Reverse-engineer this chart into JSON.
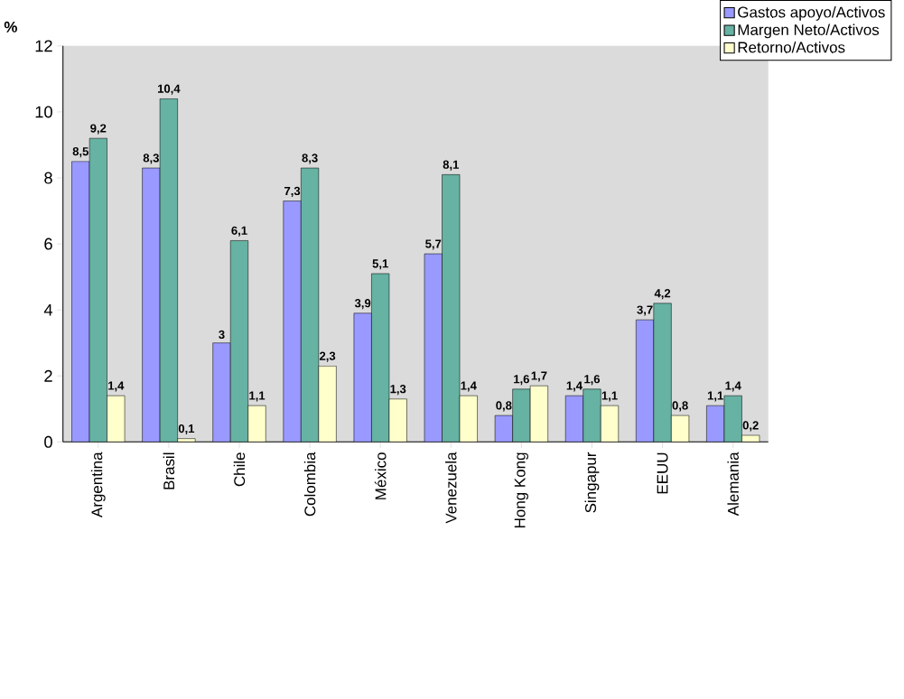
{
  "chart_data": {
    "type": "bar",
    "ylabel": "%",
    "categories": [
      "Argentina",
      "Brasil",
      "Chile",
      "Colombia",
      "México",
      "Venezuela",
      "Hong Kong",
      "Singapur",
      "EEUU",
      "Alemania"
    ],
    "series": [
      {
        "name": "Gastos apoyo/Activos",
        "color": "#9999ff",
        "values": [
          8.5,
          8.3,
          3,
          7.3,
          3.9,
          5.7,
          0.8,
          1.4,
          3.7,
          1.1
        ],
        "value_labels": [
          "8,5",
          "8,3",
          "3",
          "7,3",
          "3,9",
          "5,7",
          "0,8",
          "1,4",
          "3,7",
          "1,1"
        ]
      },
      {
        "name": "Margen Neto/Activos",
        "color": "#66b2a3",
        "values": [
          9.2,
          10.4,
          6.1,
          8.3,
          5.1,
          8.1,
          1.6,
          1.6,
          4.2,
          1.4
        ],
        "value_labels": [
          "9,2",
          "10,4",
          "6,1",
          "8,3",
          "5,1",
          "8,1",
          "1,6",
          "1,6",
          "4,2",
          "1,4"
        ]
      },
      {
        "name": "Retorno/Activos",
        "color": "#ffffcc",
        "values": [
          1.4,
          0.1,
          1.1,
          2.3,
          1.3,
          1.4,
          1.7,
          1.1,
          0.8,
          0.2
        ],
        "value_labels": [
          "1,4",
          "0,1",
          "1,1",
          "2,3",
          "1,3",
          "1,4",
          "1,7",
          "1,1",
          "0,8",
          "0,2"
        ]
      }
    ],
    "ylim": [
      0,
      12
    ],
    "yticks": [
      0,
      2,
      4,
      6,
      8,
      10,
      12
    ],
    "legend": "top right"
  }
}
